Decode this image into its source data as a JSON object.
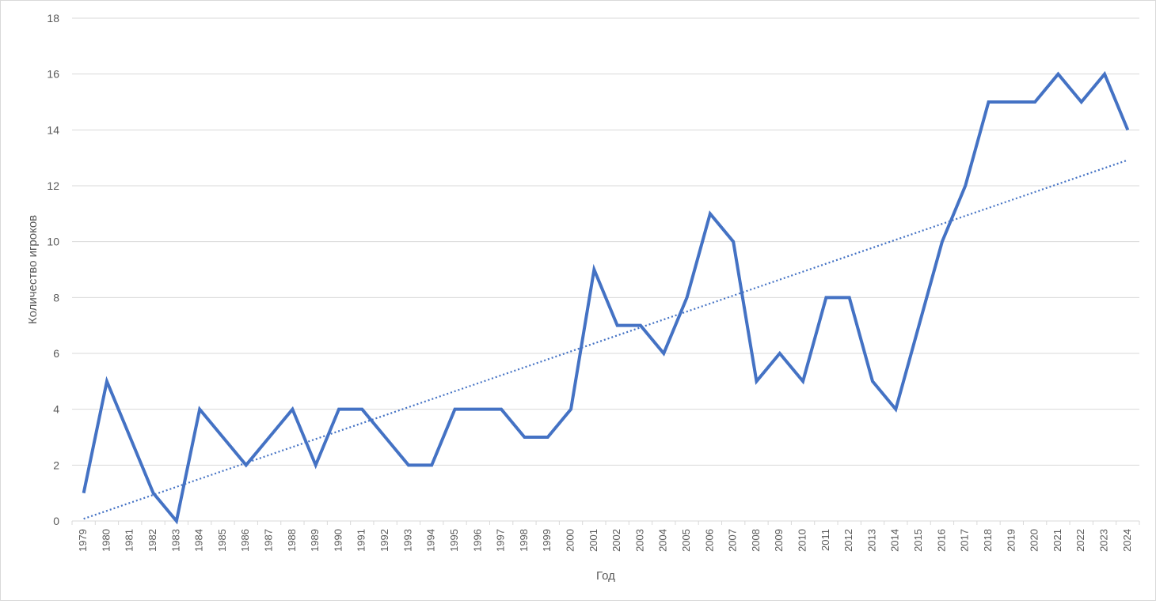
{
  "chart_data": {
    "type": "line",
    "title": "",
    "xlabel": "Год",
    "ylabel": "Количество игроков",
    "ylim": [
      0,
      18
    ],
    "ytick_step": 2,
    "y_ticks": [
      "0",
      "2",
      "4",
      "6",
      "8",
      "10",
      "12",
      "14",
      "16",
      "18"
    ],
    "grid": true,
    "legend": "none",
    "trendline": "linear, dotted",
    "colors": {
      "series": "#4472c4",
      "trendline": "#4472c4",
      "grid": "#d9d9d9",
      "text": "#595959"
    },
    "categories": [
      "1979",
      "1980",
      "1981",
      "1982",
      "1983",
      "1984",
      "1985",
      "1986",
      "1987",
      "1988",
      "1989",
      "1990",
      "1991",
      "1992",
      "1993",
      "1994",
      "1995",
      "1996",
      "1997",
      "1998",
      "1999",
      "2000",
      "2001",
      "2002",
      "2003",
      "2004",
      "2005",
      "2006",
      "2007",
      "2008",
      "2009",
      "2010",
      "2011",
      "2012",
      "2013",
      "2014",
      "2015",
      "2016",
      "2017",
      "2018",
      "2019",
      "2020",
      "2021",
      "2022",
      "2023",
      "2024"
    ],
    "series": [
      {
        "values": [
          1,
          5,
          3,
          1,
          0,
          4,
          3,
          2,
          3,
          4,
          2,
          4,
          4,
          3,
          2,
          2,
          4,
          4,
          4,
          3,
          3,
          4,
          9,
          7,
          7,
          6,
          8,
          11,
          10,
          5,
          6,
          5,
          8,
          8,
          5,
          4,
          7,
          10,
          12,
          15,
          15,
          15,
          16,
          15,
          16,
          14
        ]
      }
    ]
  }
}
